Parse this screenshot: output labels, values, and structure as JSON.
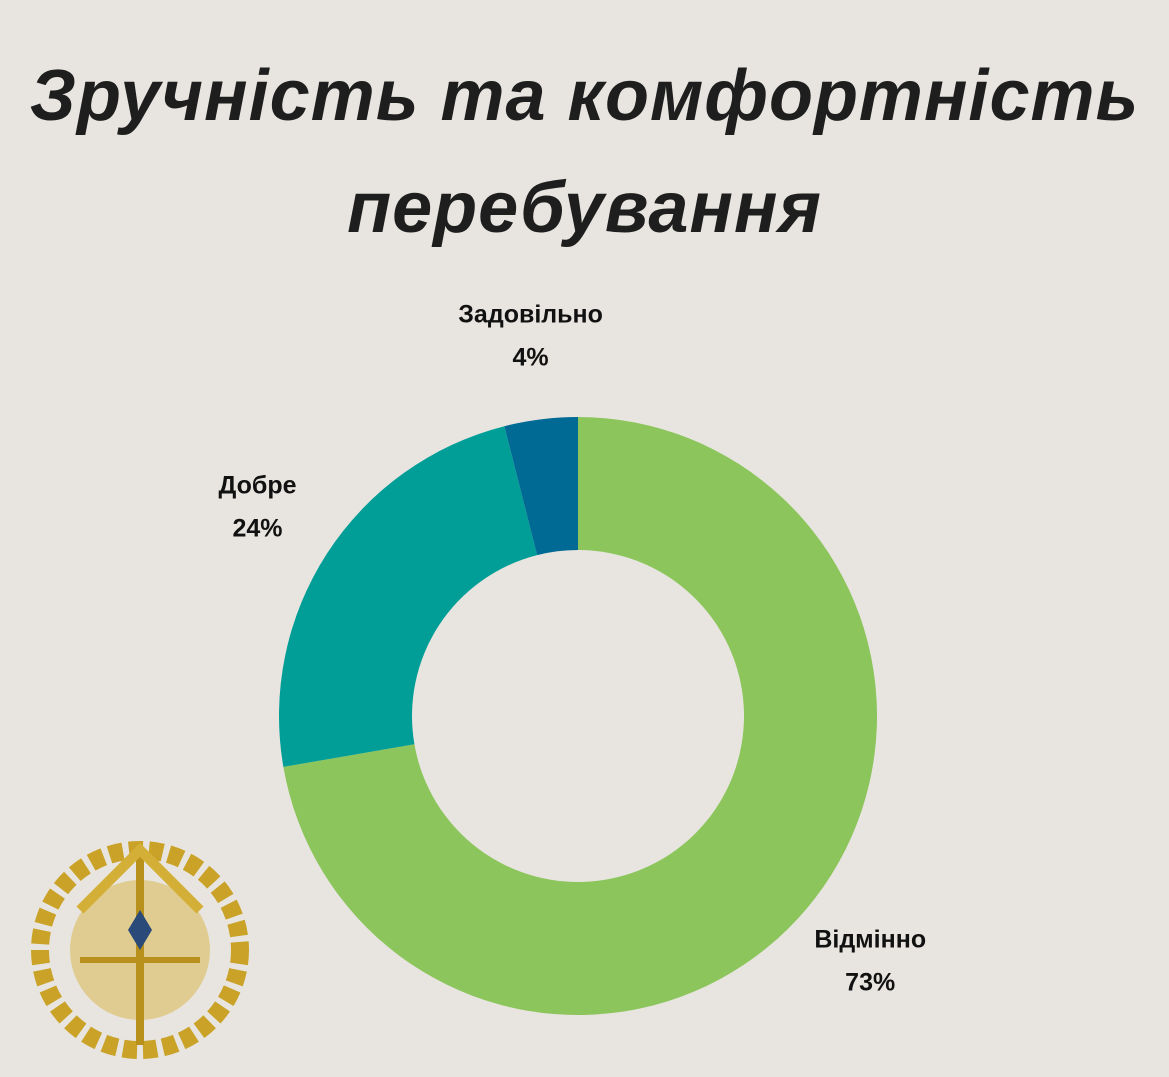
{
  "chart_data": {
    "type": "donut",
    "title": "Зручність та комфортність перебування",
    "categories": [
      "Відмінно",
      "Добре",
      "Задовільно"
    ],
    "values": [
      73,
      24,
      4
    ],
    "value_labels": [
      "73%",
      "24%",
      "4%"
    ],
    "colors": [
      "#8bc55b",
      "#009e97",
      "#006a94"
    ]
  }
}
